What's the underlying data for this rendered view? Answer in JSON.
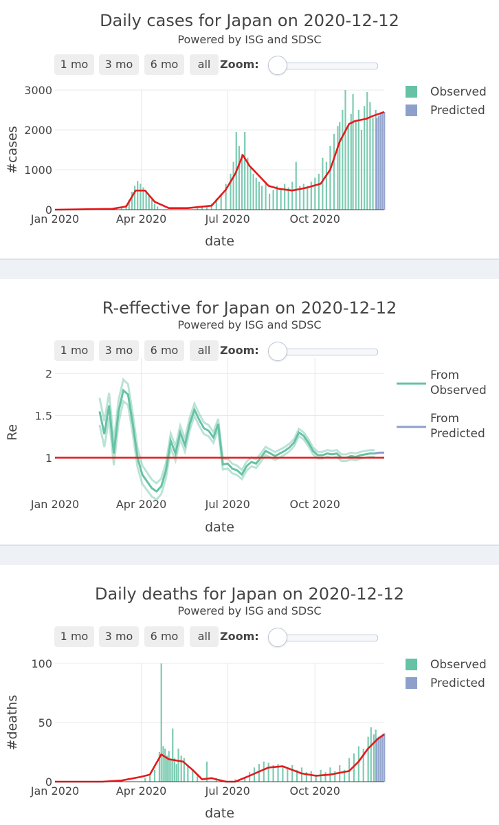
{
  "chart_data": [
    {
      "type": "bar",
      "title": "Daily cases for Japan on 2020-12-12",
      "subtitle": "Powered by ISG and SDSC",
      "xlabel": "date",
      "ylabel": "#cases",
      "x_ticks": [
        "Jan 2020",
        "Apr 2020",
        "Jul 2020",
        "Oct 2020"
      ],
      "y_ticks": [
        "0",
        "1000",
        "2000",
        "3000"
      ],
      "ylim": [
        0,
        3000
      ],
      "legend_position": "top-right",
      "series": [
        {
          "name": "Observed",
          "color": "#66c2a5"
        },
        {
          "name": "Predicted",
          "color": "#8da0cb"
        }
      ],
      "trend": {
        "color": "#e31a1c",
        "t": [
          0,
          60,
          75,
          85,
          95,
          105,
          120,
          140,
          165,
          180,
          190,
          198,
          205,
          215,
          225,
          235,
          250,
          265,
          280,
          290,
          300,
          310,
          316,
          322,
          328,
          335,
          341,
          347
        ],
        "values": [
          0,
          20,
          80,
          480,
          480,
          200,
          40,
          40,
          100,
          500,
          900,
          1370,
          1100,
          850,
          600,
          530,
          480,
          550,
          650,
          1000,
          1700,
          2150,
          2220,
          2250,
          2280,
          2350,
          2400,
          2450
        ]
      },
      "bars_observed": {
        "t": [
          65,
          70,
          75,
          78,
          81,
          84,
          87,
          90,
          93,
          96,
          99,
          102,
          105,
          108,
          150,
          155,
          160,
          165,
          170,
          175,
          180,
          185,
          188,
          191,
          194,
          197,
          200,
          203,
          206,
          209,
          212,
          215,
          218,
          222,
          226,
          230,
          234,
          238,
          242,
          246,
          250,
          254,
          258,
          262,
          266,
          270,
          274,
          278,
          282,
          286,
          290,
          294,
          298,
          300,
          303,
          306,
          309,
          312,
          314,
          317,
          320,
          323,
          326,
          329,
          332,
          335,
          338
        ],
        "values": [
          20,
          50,
          120,
          250,
          450,
          600,
          720,
          650,
          560,
          480,
          350,
          250,
          150,
          80,
          40,
          60,
          90,
          150,
          280,
          400,
          650,
          900,
          1200,
          1950,
          1600,
          1400,
          1950,
          1300,
          1050,
          900,
          800,
          700,
          600,
          650,
          400,
          500,
          600,
          520,
          650,
          560,
          700,
          1200,
          600,
          650,
          600,
          700,
          800,
          900,
          1300,
          1200,
          1600,
          1900,
          2100,
          2200,
          2500,
          3000,
          2100,
          2400,
          2900,
          2200,
          2500,
          2000,
          2600,
          2950,
          2700,
          2300,
          2500
        ]
      },
      "bars_predicted": {
        "t": [
          339,
          341,
          343,
          345,
          347
        ],
        "values": [
          2300,
          2350,
          2400,
          2420,
          2450
        ]
      }
    },
    {
      "type": "line",
      "title": "R-effective for Japan on 2020-12-12",
      "subtitle": "Powered by ISG and SDSC",
      "xlabel": "date",
      "ylabel": "Re",
      "x_ticks": [
        "Jan 2020",
        "Apr 2020",
        "Jul 2020",
        "Oct 2020"
      ],
      "y_ticks": [
        "1",
        "1.5",
        "2"
      ],
      "ylim": [
        0.5,
        2.1
      ],
      "legend_position": "top-right",
      "series": [
        {
          "name": "From Observed",
          "color": "#66c2a5"
        },
        {
          "name": "From Predicted",
          "color": "#8da0cb"
        }
      ],
      "reference_line": {
        "value": 1,
        "color": "#e31a1c"
      },
      "observed_re": {
        "t": [
          47,
          52,
          57,
          62,
          67,
          72,
          77,
          82,
          87,
          92,
          97,
          102,
          107,
          112,
          117,
          122,
          127,
          132,
          137,
          142,
          147,
          152,
          157,
          162,
          167,
          172,
          177,
          182,
          187,
          192,
          197,
          202,
          207,
          212,
          217,
          222,
          227,
          232,
          237,
          242,
          247,
          252,
          257,
          262,
          267,
          272,
          277,
          282,
          287,
          292,
          297,
          302,
          307,
          312,
          317,
          322,
          327,
          332,
          337
        ],
        "values": [
          1.55,
          1.28,
          1.62,
          1.05,
          1.55,
          1.8,
          1.75,
          1.4,
          1.0,
          0.8,
          0.72,
          0.64,
          0.6,
          0.66,
          0.85,
          1.2,
          1.05,
          1.3,
          1.15,
          1.4,
          1.57,
          1.45,
          1.35,
          1.32,
          1.24,
          1.4,
          0.92,
          0.93,
          0.87,
          0.85,
          0.8,
          0.9,
          0.95,
          0.93,
          1.0,
          1.08,
          1.05,
          1.02,
          1.05,
          1.08,
          1.12,
          1.18,
          1.3,
          1.26,
          1.18,
          1.08,
          1.03,
          1.03,
          1.05,
          1.04,
          1.05,
          1.0,
          1.0,
          1.02,
          1.01,
          1.03,
          1.04,
          1.05,
          1.05
        ]
      },
      "predicted_re": {
        "t": [
          337,
          342,
          347
        ],
        "values": [
          1.05,
          1.06,
          1.06
        ]
      }
    },
    {
      "type": "bar",
      "title": "Daily deaths for Japan on 2020-12-12",
      "subtitle": "Powered by ISG and SDSC",
      "xlabel": "date",
      "ylabel": "#deaths",
      "x_ticks": [
        "Jan 2020",
        "Apr 2020",
        "Jul 2020",
        "Oct 2020"
      ],
      "y_ticks": [
        "0",
        "50",
        "100"
      ],
      "ylim": [
        0,
        100
      ],
      "legend_position": "top-right",
      "series": [
        {
          "name": "Observed",
          "color": "#66c2a5"
        },
        {
          "name": "Predicted",
          "color": "#8da0cb"
        }
      ],
      "trend": {
        "color": "#e31a1c",
        "t": [
          0,
          50,
          70,
          90,
          100,
          112,
          120,
          135,
          145,
          155,
          165,
          170,
          180,
          190,
          205,
          225,
          240,
          250,
          260,
          275,
          290,
          310,
          320,
          330,
          340,
          347
        ],
        "values": [
          0,
          0,
          1,
          4,
          6,
          23,
          19,
          17,
          10,
          2,
          3,
          2,
          0,
          0,
          5,
          12,
          13,
          10,
          7,
          5,
          6,
          9,
          17,
          28,
          36,
          40
        ]
      },
      "bars_observed": {
        "t": [
          95,
          100,
          105,
          110,
          112,
          114,
          116,
          118,
          120,
          122,
          124,
          126,
          128,
          130,
          133,
          136,
          140,
          145,
          150,
          160,
          170,
          180,
          190,
          200,
          205,
          210,
          215,
          220,
          225,
          230,
          235,
          240,
          245,
          250,
          255,
          260,
          265,
          270,
          275,
          280,
          285,
          290,
          295,
          300,
          305,
          310,
          315,
          320,
          325,
          330,
          333,
          336,
          338
        ],
        "values": [
          3,
          5,
          10,
          25,
          100,
          30,
          28,
          22,
          26,
          18,
          45,
          20,
          15,
          28,
          22,
          20,
          14,
          10,
          6,
          17,
          3,
          1,
          2,
          4,
          8,
          12,
          15,
          17,
          16,
          14,
          15,
          13,
          12,
          14,
          10,
          12,
          8,
          9,
          6,
          10,
          8,
          12,
          9,
          14,
          10,
          20,
          24,
          30,
          28,
          38,
          46,
          40,
          44
        ]
      },
      "bars_predicted": {
        "t": [
          339,
          341,
          343,
          345,
          347
        ],
        "values": [
          37,
          38,
          39,
          40,
          41
        ]
      }
    }
  ],
  "controls": {
    "btn_1mo": "1 mo",
    "btn_3mo": "3 mo",
    "btn_6mo": "6 mo",
    "btn_all": "all",
    "zoom_label": "Zoom:"
  }
}
